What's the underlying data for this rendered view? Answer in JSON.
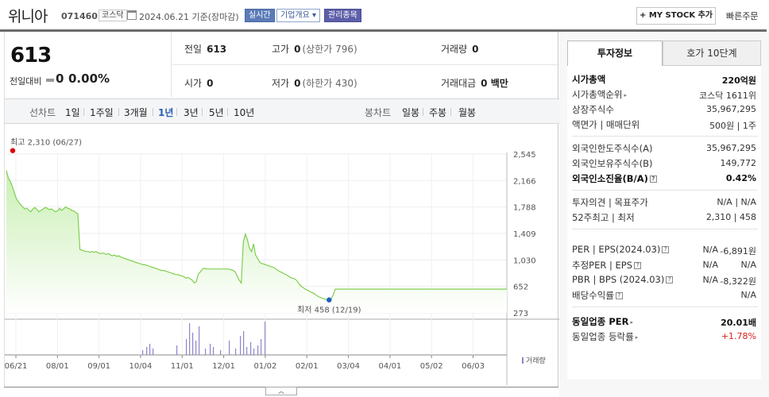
{
  "header": {
    "company": "위니아",
    "code": "071460",
    "market": "코스닥",
    "date": "2024.06.21 기준(장마감)",
    "realtime": "실시간",
    "corp_info": "기업개요 ▾",
    "mgmt": "관리종목",
    "mystock": "+ MY STOCK 추가",
    "quick_order": "빠른주문"
  },
  "summary": {
    "price": "613",
    "change_label": "전일대비",
    "change": "0",
    "change_pct": "0.00%",
    "prev_label": "전일",
    "prev": "613",
    "high_label": "고가",
    "high": "0",
    "high_sub": "(상한가 796)",
    "vol_label": "거래량",
    "vol": "0",
    "open_label": "시가",
    "open": "0",
    "low_label": "저가",
    "low": "0",
    "low_sub": "(하한가 430)",
    "amt_label": "거래대금",
    "amt": "0 백만"
  },
  "period": {
    "line_label": "선차트",
    "items": [
      "1일",
      "1주일",
      "3개월",
      "1년",
      "3년",
      "5년",
      "10년"
    ],
    "selected": "1년",
    "candle_label": "봉차트",
    "candle_items": [
      "일봉",
      "주봉",
      "월봉"
    ]
  },
  "chart_data": {
    "type": "area",
    "yticks": [
      "2,545",
      "2,166",
      "1,788",
      "1,409",
      "1,030",
      "652",
      "273"
    ],
    "ylim": [
      273,
      2545
    ],
    "xticks": [
      "06/21",
      "08/01",
      "09/01",
      "10/04",
      "11/01",
      "12/01",
      "01/02",
      "02/01",
      "03/04",
      "04/01",
      "05/02",
      "06/03"
    ],
    "high_label": "최고 2,310 (06/27)",
    "low_label": "최저 458 (12/19)",
    "volume_legend": "거래량",
    "series": [
      {
        "values": [
          2310,
          2200,
          2150,
          2080,
          1980,
          1900,
          1860,
          1820,
          1790,
          1760,
          1770,
          1740,
          1720,
          1760,
          1780,
          1750,
          1720,
          1740,
          1760,
          1780,
          1770,
          1750,
          1760,
          1740,
          1720,
          1730,
          1770,
          1740,
          1760,
          1790,
          1770,
          1760,
          1740,
          1730,
          1710,
          1690,
          1180,
          1170,
          1160,
          1150,
          1150,
          1140,
          1150,
          1140,
          1150,
          1130,
          1120,
          1130,
          1120,
          1110,
          1120,
          1100,
          1090,
          1100,
          1080,
          1090,
          1070,
          1060,
          1050,
          1040,
          1030,
          1020,
          1010,
          1000,
          990,
          980,
          970,
          960,
          960,
          950,
          940,
          930,
          920,
          910,
          900,
          890,
          880,
          880,
          870,
          860,
          850,
          840,
          830,
          820,
          820,
          810,
          800,
          790,
          770,
          780,
          760,
          740,
          700,
          720,
          830,
          860,
          900,
          910,
          900,
          900,
          900,
          900,
          900,
          900,
          900,
          900,
          900,
          900,
          900,
          900,
          890,
          880,
          860,
          800,
          740,
          700,
          1290,
          1400,
          1320,
          1200,
          1150,
          1260,
          1100,
          1050,
          1000,
          980,
          970,
          960,
          950,
          940,
          930,
          920,
          900,
          880,
          860,
          850,
          830,
          820,
          800,
          780,
          770,
          760,
          740,
          700,
          660,
          640,
          620,
          600,
          590,
          570,
          560,
          540,
          520,
          500,
          490,
          480,
          470,
          460,
          458,
          470,
          530,
          613,
          613,
          613,
          613,
          613,
          613,
          613,
          613,
          613,
          613,
          613,
          613,
          613,
          613,
          613,
          613,
          613,
          613,
          613,
          613,
          613,
          613,
          613,
          613,
          613,
          613,
          613,
          613,
          613,
          613,
          613,
          613,
          613,
          613,
          613,
          613,
          613,
          613,
          613,
          613,
          613,
          613,
          613,
          613,
          613,
          613,
          613,
          613,
          613,
          613,
          613,
          613,
          613,
          613,
          613,
          613,
          613,
          613,
          613,
          613,
          613,
          613,
          613,
          613,
          613,
          613,
          613,
          613,
          613,
          613,
          613,
          613,
          613,
          613,
          613,
          613,
          613,
          613,
          613,
          613,
          613,
          613,
          613,
          613,
          613
        ]
      }
    ],
    "volume": [
      0,
      0,
      0,
      0,
      0,
      0,
      0,
      0,
      0,
      0,
      0,
      0,
      0,
      0,
      0,
      0,
      0,
      0,
      0,
      0,
      0,
      0,
      0,
      0,
      0,
      0,
      0,
      0,
      0,
      0,
      0,
      0,
      0,
      0,
      0,
      0,
      0,
      0,
      0,
      0,
      0,
      0,
      0,
      0,
      0,
      0,
      0,
      0,
      0,
      0,
      0,
      0,
      0,
      0,
      0,
      0,
      0,
      0,
      0,
      0,
      0,
      0,
      0,
      0,
      0,
      0,
      0,
      0,
      0,
      0,
      0,
      0,
      0,
      0,
      0,
      0,
      0,
      0,
      0,
      0,
      0,
      0,
      0,
      0,
      0,
      0,
      0,
      0,
      0,
      0,
      0,
      0,
      0,
      0,
      0,
      0,
      0,
      0,
      0,
      0,
      0,
      0,
      0,
      0,
      0,
      0,
      0,
      0,
      0,
      0,
      0,
      0,
      0,
      0,
      0,
      0,
      0,
      0,
      0,
      0,
      0,
      0,
      0,
      0,
      0,
      0,
      0,
      0,
      0,
      0,
      0,
      0,
      0,
      0,
      0,
      0,
      0,
      0,
      0,
      0,
      0,
      0,
      0,
      0,
      0,
      0,
      0,
      0,
      0,
      0,
      0,
      0,
      0,
      0,
      0,
      0,
      0,
      0,
      0,
      0,
      0,
      0,
      0,
      0,
      0,
      0,
      0,
      0,
      0,
      0,
      0,
      0,
      0,
      0,
      0,
      0,
      0,
      0,
      0,
      0,
      0,
      0,
      0,
      0,
      0,
      0,
      0,
      0,
      0,
      0,
      0,
      0,
      0,
      0,
      0,
      0,
      0,
      0,
      0,
      0,
      0,
      0,
      0,
      0,
      0,
      0,
      0,
      0,
      0,
      0,
      0,
      0,
      0,
      0,
      0,
      0,
      0,
      0,
      0,
      0,
      0,
      0,
      0,
      0,
      0,
      0,
      0,
      0,
      0,
      0,
      0,
      0,
      0,
      0
    ]
  },
  "right": {
    "tab_invest": "투자정보",
    "tab_hoga": "호가 10단계",
    "rows": [
      {
        "label": "시가총액",
        "value": "220억원",
        "bold": true
      },
      {
        "label": "시가총액순위",
        "value": "코스닥 1611위"
      },
      {
        "label": "상장주식수",
        "value": "35,967,295"
      },
      {
        "label": "액면가 | 매매단위",
        "value": "500원 | 1주"
      },
      {
        "label": "외국인한도주식수(A)",
        "value": "35,967,295"
      },
      {
        "label": "외국인보유주식수(B)",
        "value": "149,772"
      },
      {
        "label": "외국인소진율(B/A)",
        "value": "0.42%",
        "bold": true
      },
      {
        "label": "투자의견 | 목표주가",
        "value": "N/A | N/A"
      },
      {
        "label": "52주최고 | 최저",
        "value": "2,310 | 458"
      },
      {
        "label": "PER | EPS(2024.03)",
        "value1": "N/A",
        "value": "-6,891원"
      },
      {
        "label": "추정PER | EPS",
        "value1": "N/A",
        "value": "N/A"
      },
      {
        "label": "PBR | BPS (2024.03)",
        "value1": "N/A",
        "value": "-8,322원"
      },
      {
        "label": "배당수익률",
        "value": "N/A"
      },
      {
        "label": "동일업종 PER",
        "value": "20.01배",
        "bold": true
      },
      {
        "label": "동일업종 등락률",
        "value": "+1.78%"
      }
    ]
  },
  "colors": {
    "line": "#7fcf4f",
    "fill_top": "#c9efb3",
    "volume": "#8d86c9",
    "high": "#e00000",
    "low": "#1f5fbf"
  }
}
